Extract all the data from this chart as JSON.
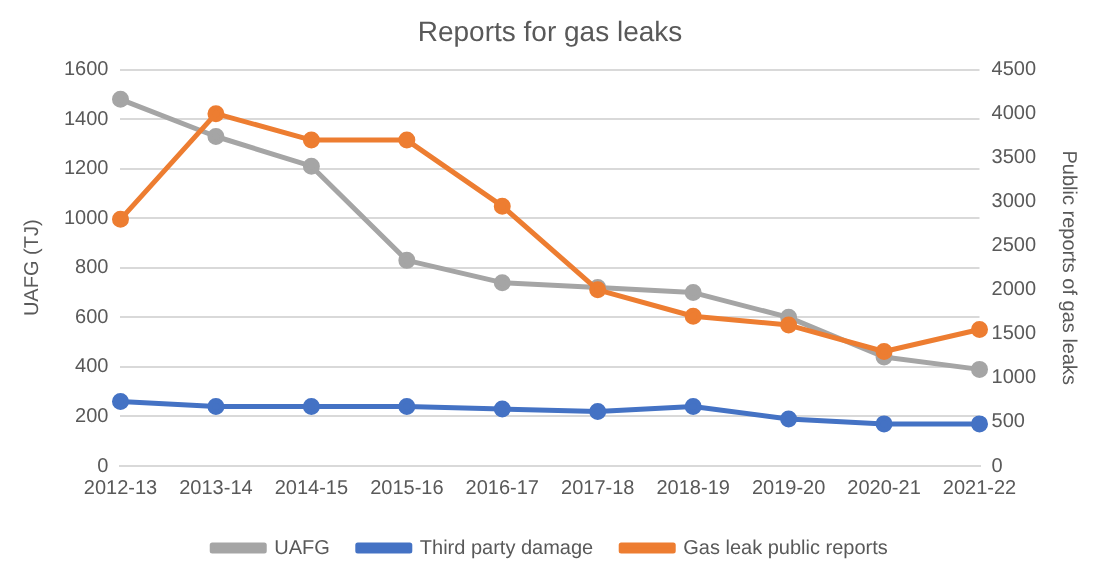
{
  "chart_data": {
    "type": "line",
    "title": "Reports for gas leaks",
    "ylabel": "UAFG (TJ)",
    "y2label": "Public reports of gas leaks",
    "categories": [
      "2012-13",
      "2013-14",
      "2014-15",
      "2015-16",
      "2016-17",
      "2017-18",
      "2018-19",
      "2019-20",
      "2020-21",
      "2021-22"
    ],
    "series": [
      {
        "name": "UAFG",
        "color": "#a5a5a5",
        "values": [
          1480,
          1330,
          1210,
          830,
          740,
          720,
          700,
          600,
          440,
          390
        ]
      },
      {
        "name": "Third party damage",
        "color": "#4472c4",
        "values": [
          260,
          240,
          240,
          240,
          230,
          220,
          240,
          190,
          170,
          170
        ]
      },
      {
        "name": "Gas leak public reports",
        "color": "#ed7d31",
        "axis": "y2",
        "values": [
          2800,
          4000,
          3700,
          3700,
          2950,
          2000,
          1700,
          1600,
          1300,
          1550
        ]
      }
    ],
    "ylim": [
      0,
      1600
    ],
    "yticks": [
      0,
      200,
      400,
      600,
      800,
      1000,
      1200,
      1400,
      1600
    ],
    "y2lim": [
      0,
      4500
    ],
    "y2ticks": [
      0,
      500,
      1000,
      1500,
      2000,
      2500,
      3000,
      3500,
      4000,
      4500
    ],
    "grid": "y",
    "legend": "bottom",
    "marker": "circle",
    "line_style": "solid"
  }
}
